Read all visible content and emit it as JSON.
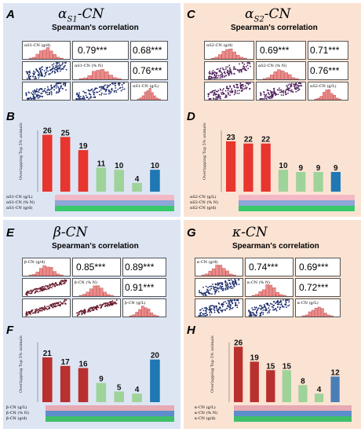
{
  "panels": {
    "A": {
      "letter": "A",
      "title": "αS1-CN",
      "title_main": "α",
      "title_sub": "S1",
      "title_tail": "-CN",
      "subtitle": "Spearman's correlation",
      "diag": [
        "αS1-CN (g/d)",
        "αS1-CN (% N)",
        "αS1-CN (g/L)"
      ],
      "corr": [
        "0.79***",
        "0.68***",
        "0.76***"
      ]
    },
    "C": {
      "letter": "C",
      "title": "αS2-CN",
      "title_main": "α",
      "title_sub": "S2",
      "title_tail": "-CN",
      "subtitle": "Spearman's correlation",
      "diag": [
        "αS2-CN (g/d)",
        "αS2-CN (% N)",
        "αS2-CN (g/L)"
      ],
      "corr": [
        "0.69***",
        "0.71***",
        "0.76***"
      ]
    },
    "E": {
      "letter": "E",
      "title": "β-CN",
      "title_main": "β",
      "title_sub": "",
      "title_tail": "-CN",
      "subtitle": "Spearman's correlation",
      "diag": [
        "β-CN (g/d)",
        "β-CN (% N)",
        "β-CN (g/L)"
      ],
      "corr": [
        "0.85***",
        "0.89***",
        "0.91***"
      ]
    },
    "G": {
      "letter": "G",
      "title": "κ-CN",
      "title_main": "κ",
      "title_sub": "",
      "title_tail": "-CN",
      "subtitle": "Spearman's correlation",
      "diag": [
        "κ-CN (g/d)",
        "κ-CN (% N)",
        "κ-CN (g/L)"
      ],
      "corr": [
        "0.74***",
        "0.69***",
        "0.72***"
      ]
    },
    "B": {
      "letter": "B",
      "ylabel": "Overlapping Top 5% animals",
      "rows": [
        "αS1-CN (g/L)",
        "αS1-CN (% N)",
        "αS1-CN (g/d)"
      ]
    },
    "D": {
      "letter": "D",
      "ylabel": "Overlapping Top 5% animals",
      "rows": [
        "αS2-CN (g/L)",
        "αS2-CN (% N)",
        "αS2-CN (g/d)"
      ]
    },
    "F": {
      "letter": "F",
      "ylabel": "Overlapping Top 5% animals",
      "rows": [
        "β-CN (g/L)",
        "β-CN (% N)",
        "β-CN (g/d)"
      ]
    },
    "H": {
      "letter": "H",
      "ylabel": "Overlapping Top 5% animals",
      "rows": [
        "κ-CN (g/L)",
        "κ-CN (% N)",
        "κ-CN (g/d)"
      ]
    }
  },
  "chart_data": [
    {
      "id": "B",
      "type": "bar",
      "values": [
        26,
        25,
        19,
        11,
        10,
        4,
        10
      ],
      "colors": [
        "#e8352e",
        "#e8352e",
        "#e8352e",
        "#9ed39a",
        "#9ed39a",
        "#9ed39a",
        "#1f78b4"
      ]
    },
    {
      "id": "D",
      "type": "bar",
      "values": [
        23,
        22,
        22,
        10,
        9,
        9,
        9
      ],
      "colors": [
        "#e8352e",
        "#e8352e",
        "#e8352e",
        "#9ed39a",
        "#9ed39a",
        "#9ed39a",
        "#1f78b4"
      ]
    },
    {
      "id": "F",
      "type": "bar",
      "values": [
        21,
        17,
        16,
        9,
        5,
        4,
        20
      ],
      "colors": [
        "#b8312f",
        "#b8312f",
        "#b8312f",
        "#9ed39a",
        "#9ed39a",
        "#9ed39a",
        "#1f78b4"
      ]
    },
    {
      "id": "H",
      "type": "bar",
      "values": [
        26,
        19,
        15,
        15,
        8,
        4,
        12
      ],
      "colors": [
        "#b8312f",
        "#b8312f",
        "#b8312f",
        "#9ed39a",
        "#9ed39a",
        "#9ed39a",
        "#4a7fb5"
      ]
    }
  ]
}
